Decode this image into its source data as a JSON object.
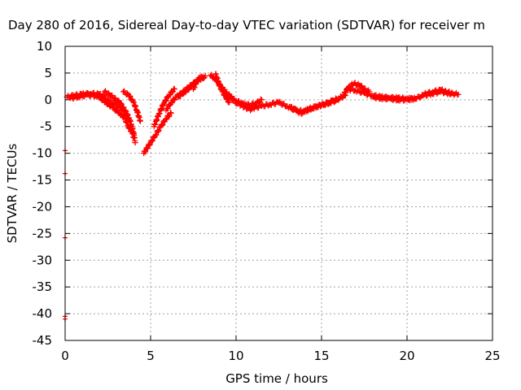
{
  "chart_data": {
    "type": "scatter",
    "title": "Day 280 of 2016, Sidereal Day-to-day VTEC variation (SDTVAR) for receiver m",
    "xlabel": "GPS time / hours",
    "ylabel": "SDTVAR / TECUs",
    "xlim": [
      0,
      25
    ],
    "ylim": [
      -45,
      10
    ],
    "x_ticks": [
      0,
      5,
      10,
      15,
      20,
      25
    ],
    "y_ticks": [
      10,
      5,
      0,
      -5,
      -10,
      -15,
      -20,
      -25,
      -30,
      -35,
      -40,
      -45
    ],
    "grid": true,
    "legend": "none",
    "marker": "plus",
    "color": "#ff0000",
    "series": [
      {
        "tracks": [
          {
            "x": [
              0.1,
              0.5,
              1.0,
              1.5,
              2.0,
              2.3
            ],
            "y": [
              0.5,
              0.8,
              1.0,
              1.2,
              1.0,
              0.6
            ]
          },
          {
            "x": [
              0.3,
              0.8,
              1.3,
              1.8,
              2.3,
              2.8,
              3.2,
              3.5,
              3.8,
              4.0,
              4.1
            ],
            "y": [
              0.3,
              0.6,
              0.9,
              0.8,
              0.2,
              -0.6,
              -1.5,
              -2.5,
              -4.0,
              -6.0,
              -8.0
            ]
          },
          {
            "x": [
              2.3,
              2.6,
              2.9,
              3.2,
              3.4,
              3.6,
              3.8,
              4.0
            ],
            "y": [
              1.5,
              1.0,
              0.2,
              -0.5,
              -1.5,
              -2.5,
              -4.0,
              -7.0
            ]
          },
          {
            "x": [
              2.0,
              2.4,
              2.8,
              3.2,
              3.5,
              3.7,
              3.9
            ],
            "y": [
              0.5,
              -0.5,
              -1.5,
              -2.5,
              -3.5,
              -5.0,
              -6.0
            ]
          },
          {
            "x": [
              3.4,
              3.7,
              4.0,
              4.2,
              4.4
            ],
            "y": [
              1.5,
              1.0,
              -0.5,
              -2.0,
              -4.0
            ]
          },
          {
            "x": [
              4.6,
              4.8,
              5.0,
              5.3,
              5.6,
              5.9,
              6.2
            ],
            "y": [
              -10.0,
              -9.0,
              -8.0,
              -6.5,
              -5.0,
              -3.5,
              -2.5
            ]
          },
          {
            "x": [
              5.2,
              5.5,
              5.8,
              6.1,
              6.4
            ],
            "y": [
              -5.0,
              -2.5,
              -0.5,
              1.0,
              2.0
            ]
          },
          {
            "x": [
              5.9,
              6.2,
              6.5,
              6.8,
              7.1,
              7.4,
              7.7
            ],
            "y": [
              -2.0,
              -0.5,
              0.5,
              1.2,
              2.0,
              2.8,
              3.5
            ]
          },
          {
            "x": [
              6.6,
              7.0,
              7.4,
              7.7,
              8.0,
              8.2
            ],
            "y": [
              0.5,
              1.5,
              2.5,
              3.5,
              4.0,
              4.5
            ]
          },
          {
            "x": [
              7.5,
              7.7,
              7.9,
              8.1
            ],
            "y": [
              2.0,
              3.5,
              4.2,
              4.0
            ]
          },
          {
            "x": [
              8.5,
              8.7,
              8.9,
              9.1,
              9.3,
              9.5,
              9.7,
              10.0,
              10.3,
              10.6,
              10.9
            ],
            "y": [
              4.5,
              4.2,
              3.5,
              2.5,
              1.8,
              1.2,
              0.5,
              -0.5,
              -1.0,
              -1.5,
              -1.8
            ]
          },
          {
            "x": [
              8.8,
              9.0,
              9.2,
              9.4,
              9.6
            ],
            "y": [
              4.8,
              3.0,
              1.5,
              0.5,
              -0.5
            ]
          },
          {
            "x": [
              9.6,
              10.0,
              10.4,
              10.8,
              11.2,
              11.5
            ],
            "y": [
              0.5,
              -0.2,
              -0.8,
              -1.0,
              -0.6,
              0.0
            ]
          },
          {
            "x": [
              10.5,
              11.0,
              11.5,
              12.0,
              12.5
            ],
            "y": [
              -1.0,
              -1.5,
              -1.2,
              -0.8,
              -0.5
            ]
          },
          {
            "x": [
              12.5,
              13.0,
              13.5,
              13.8,
              14.1,
              14.4,
              14.8,
              15.2,
              15.6,
              16.0,
              16.4
            ],
            "y": [
              -0.5,
              -1.2,
              -2.0,
              -2.5,
              -2.0,
              -1.5,
              -1.2,
              -0.8,
              -0.3,
              0.3,
              0.8
            ]
          },
          {
            "x": [
              13.2,
              13.6,
              14.0,
              14.5,
              15.0,
              15.5,
              16.0
            ],
            "y": [
              -1.5,
              -2.0,
              -2.2,
              -1.5,
              -1.0,
              -0.5,
              0.0
            ]
          },
          {
            "x": [
              16.3,
              16.6,
              16.9,
              17.2,
              17.5,
              17.8
            ],
            "y": [
              1.0,
              2.5,
              3.0,
              2.8,
              2.0,
              1.5
            ]
          },
          {
            "x": [
              16.5,
              17.0,
              17.5,
              18.0,
              18.5,
              19.0,
              19.5,
              20.0,
              20.5
            ],
            "y": [
              2.0,
              1.8,
              1.2,
              0.8,
              0.5,
              0.4,
              0.3,
              0.2,
              0.2
            ]
          },
          {
            "x": [
              18.0,
              18.5,
              19.0,
              19.5,
              20.0,
              20.5,
              21.0,
              21.5,
              22.0,
              22.5,
              23.0
            ],
            "y": [
              0.5,
              0.3,
              0.2,
              0.0,
              0.0,
              0.3,
              0.8,
              1.2,
              1.5,
              1.2,
              1.0
            ]
          },
          {
            "x": [
              21.0,
              21.5,
              22.0,
              22.3,
              22.6
            ],
            "y": [
              1.0,
              1.5,
              1.8,
              1.5,
              1.2
            ]
          }
        ],
        "outliers": {
          "x": [
            0,
            0,
            0,
            0,
            0
          ],
          "y": [
            -9.5,
            -13.8,
            -25.8,
            -40.5,
            -41.0
          ]
        }
      }
    ]
  }
}
